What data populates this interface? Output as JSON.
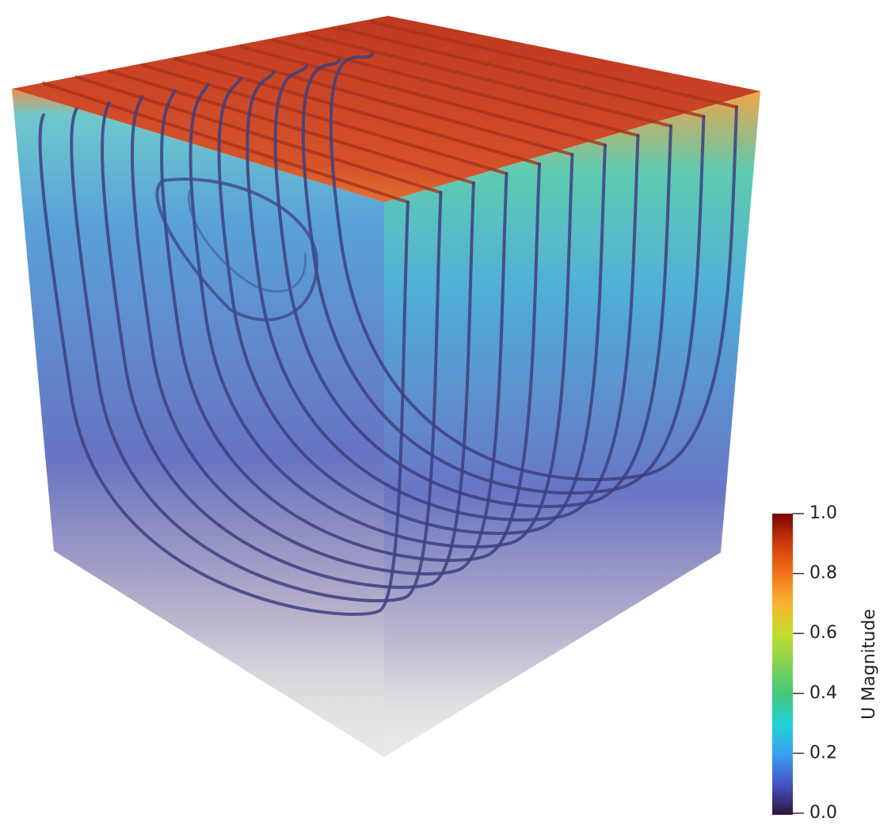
{
  "colorbar": {
    "title": "U Magnitude",
    "range": [
      0,
      1
    ],
    "ticks": [
      {
        "value": 0,
        "label": "0.0"
      },
      {
        "value": 0.2,
        "label": "0.2"
      },
      {
        "value": 0.4,
        "label": "0.4"
      },
      {
        "value": 0.6,
        "label": "0.6"
      },
      {
        "value": 0.8,
        "label": "0.8"
      },
      {
        "value": 1,
        "label": "1.0"
      }
    ]
  }
}
